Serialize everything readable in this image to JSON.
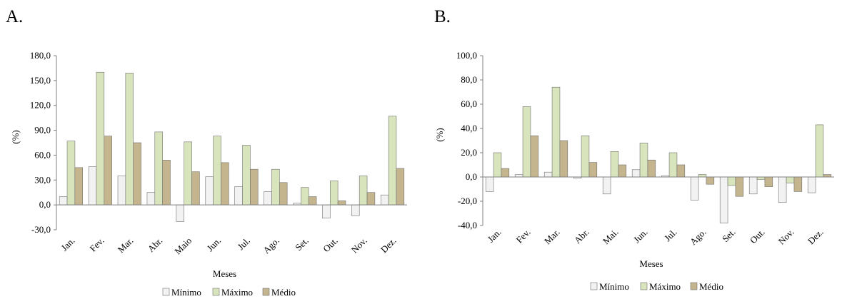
{
  "panels": [
    {
      "letter": "A."
    },
    {
      "letter": "B."
    }
  ],
  "colors": {
    "minimo": "#f2f2f2",
    "maximo": "#d8e4bc",
    "medio": "#c4b58e",
    "stroke": "#707070"
  },
  "chart_data": [
    {
      "type": "bar",
      "title": "",
      "xlabel": "Meses",
      "ylabel": "(%)",
      "ylim": [
        -30,
        180
      ],
      "yticks": [
        -30,
        0,
        30,
        60,
        90,
        120,
        150,
        180
      ],
      "ytick_labels": [
        "-30,0",
        "0,0",
        "30,0",
        "60,0",
        "90,0",
        "120,0",
        "150,0",
        "180,0"
      ],
      "categories": [
        "Jan.",
        "Fev.",
        "Mar.",
        "Abr.",
        "Maio",
        "Jun.",
        "Jul.",
        "Ago.",
        "Set.",
        "Out.",
        "Nov.",
        "Dez."
      ],
      "series": [
        {
          "name": "Mínimo",
          "values": [
            10,
            46,
            35,
            15,
            -20,
            34,
            22,
            16,
            2,
            -16,
            -13,
            12
          ]
        },
        {
          "name": "Máximo",
          "values": [
            77,
            160,
            159,
            88,
            76,
            83,
            72,
            43,
            21,
            29,
            35,
            107
          ]
        },
        {
          "name": "Médio",
          "values": [
            45,
            83,
            75,
            54,
            40,
            51,
            43,
            27,
            10,
            5,
            15,
            44
          ]
        }
      ],
      "grid": false,
      "legend_position": "bottom"
    },
    {
      "type": "bar",
      "title": "",
      "xlabel": "Meses",
      "ylabel": "(%)",
      "ylim": [
        -40,
        100
      ],
      "yticks": [
        -40,
        -20,
        0,
        20,
        40,
        60,
        80,
        100
      ],
      "ytick_labels": [
        "-40,0",
        "-20,0",
        "0,0",
        "20,0",
        "40,0",
        "60,0",
        "80,0",
        "100,0"
      ],
      "categories": [
        "Jan.",
        "Fev.",
        "Mar.",
        "Abr.",
        "Mai.",
        "Jun.",
        "Jul.",
        "Ago.",
        "Set.",
        "Out.",
        "Nov.",
        "Dez."
      ],
      "series": [
        {
          "name": "Mínimo",
          "values": [
            -12,
            2,
            4,
            -1,
            -14,
            6,
            1,
            -19,
            -38,
            -14,
            -21,
            -13
          ]
        },
        {
          "name": "Máximo",
          "values": [
            20,
            58,
            74,
            34,
            21,
            28,
            20,
            2,
            -7,
            -2,
            -5,
            43
          ]
        },
        {
          "name": "Médio",
          "values": [
            7,
            34,
            30,
            12,
            10,
            14,
            10,
            -6,
            -16,
            -8,
            -12,
            2
          ]
        }
      ],
      "grid": false,
      "legend_position": "bottom"
    }
  ]
}
